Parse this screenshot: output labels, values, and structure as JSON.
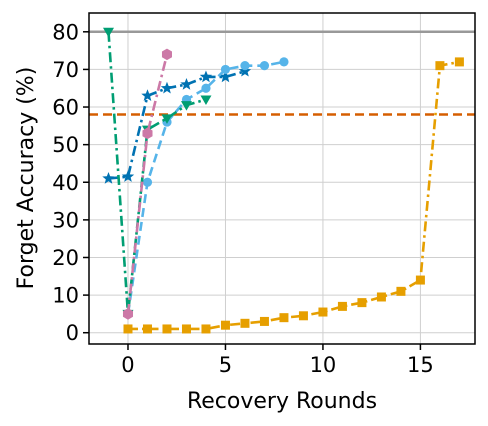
{
  "chart_data": {
    "type": "line",
    "title": "",
    "xlabel": "Recovery Rounds",
    "ylabel": "Forget Accuracy (%)",
    "xlim": [
      -2.0,
      17.8
    ],
    "ylim": [
      -3,
      85
    ],
    "xticks": [
      0,
      5,
      10,
      15
    ],
    "yticks": [
      0,
      10,
      20,
      30,
      40,
      50,
      60,
      70,
      80
    ],
    "grid": true,
    "reference_lines": [
      {
        "y": 80,
        "color": "#999999",
        "style": "solid"
      },
      {
        "y": 58,
        "color": "#d55e00",
        "style": "dashed"
      }
    ],
    "series": [
      {
        "color": "#e69f00",
        "marker": "square",
        "dash": "dashdot",
        "points": [
          [
            0,
            1
          ],
          [
            1,
            1
          ],
          [
            2,
            1
          ],
          [
            3,
            1
          ],
          [
            4,
            1
          ],
          [
            5,
            2
          ],
          [
            6,
            2.5
          ],
          [
            7,
            3
          ],
          [
            8,
            4
          ],
          [
            9,
            4.5
          ],
          [
            10,
            5.5
          ],
          [
            11,
            7
          ],
          [
            12,
            8
          ],
          [
            13,
            9.5
          ],
          [
            14,
            11
          ],
          [
            15,
            14
          ],
          [
            16,
            71
          ],
          [
            17,
            72
          ]
        ]
      },
      {
        "color": "#0072b2",
        "marker": "star",
        "dash": "dashdot",
        "points": [
          [
            -1,
            41
          ],
          [
            0,
            41.5
          ],
          [
            1,
            63
          ],
          [
            2,
            65
          ],
          [
            3,
            66
          ],
          [
            4,
            68
          ],
          [
            5,
            68
          ],
          [
            6,
            69.5
          ]
        ]
      },
      {
        "color": "#56b4e9",
        "marker": "circle",
        "dash": "dashed",
        "points": [
          [
            0,
            5
          ],
          [
            1,
            40
          ],
          [
            2,
            56
          ],
          [
            3,
            62
          ],
          [
            4,
            65
          ],
          [
            5,
            70
          ],
          [
            6,
            71
          ],
          [
            7,
            71
          ],
          [
            8,
            72
          ]
        ]
      },
      {
        "color": "#009e73",
        "marker": "triangle-down",
        "dash": "dashdot",
        "points": [
          [
            -1,
            80
          ],
          [
            0,
            5
          ],
          [
            1,
            54
          ],
          [
            2,
            57
          ],
          [
            3,
            60.5
          ],
          [
            4,
            62
          ]
        ]
      },
      {
        "color": "#cc79a7",
        "marker": "hexagon",
        "dash": "dashdot",
        "points": [
          [
            0,
            5
          ],
          [
            1,
            53
          ],
          [
            2,
            74
          ]
        ]
      }
    ]
  }
}
